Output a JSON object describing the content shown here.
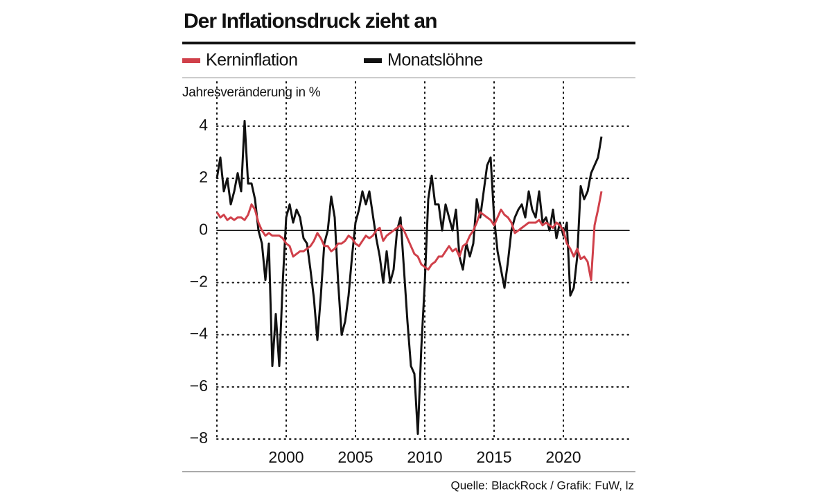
{
  "chart_data": {
    "type": "line",
    "title": "Der Inflationsdruck zieht an",
    "y_label": "Jahresveränderung in %",
    "source": "Quelle: BlackRock / Grafik: FuW, lz",
    "legend": "top",
    "grid": true,
    "xlim": [
      1995,
      2025
    ],
    "xticks": [
      2000,
      2005,
      2010,
      2015,
      2020
    ],
    "ylim": [
      -8,
      5.7
    ],
    "yticks": [
      {
        "value": -8,
        "label": "−8"
      },
      {
        "value": -6,
        "label": "−6"
      },
      {
        "value": -4,
        "label": "−4"
      },
      {
        "value": -2,
        "label": "−2"
      },
      0,
      2,
      4
    ],
    "x": [
      1995,
      1995.25,
      1995.5,
      1995.75,
      1996,
      1996.25,
      1996.5,
      1996.75,
      1997,
      1997.25,
      1997.5,
      1997.75,
      1998,
      1998.25,
      1998.5,
      1998.75,
      1999,
      1999.25,
      1999.5,
      1999.75,
      2000,
      2000.25,
      2000.5,
      2000.75,
      2001,
      2001.25,
      2001.5,
      2001.75,
      2002,
      2002.25,
      2002.5,
      2002.75,
      2003,
      2003.25,
      2003.5,
      2003.75,
      2004,
      2004.25,
      2004.5,
      2004.75,
      2005,
      2005.25,
      2005.5,
      2005.75,
      2006,
      2006.25,
      2006.5,
      2006.75,
      2007,
      2007.25,
      2007.5,
      2007.75,
      2008,
      2008.25,
      2008.5,
      2008.75,
      2009,
      2009.25,
      2009.5,
      2009.75,
      2010,
      2010.25,
      2010.5,
      2010.75,
      2011,
      2011.25,
      2011.5,
      2011.75,
      2012,
      2012.25,
      2012.5,
      2012.75,
      2013,
      2013.25,
      2013.5,
      2013.75,
      2014,
      2014.25,
      2014.5,
      2014.75,
      2015,
      2015.25,
      2015.5,
      2015.75,
      2016,
      2016.25,
      2016.5,
      2016.75,
      2017,
      2017.25,
      2017.5,
      2017.75,
      2018,
      2018.25,
      2018.5,
      2018.75,
      2019,
      2019.25,
      2019.5,
      2019.75,
      2020,
      2020.25,
      2020.5,
      2020.75,
      2021,
      2021.25,
      2021.5,
      2021.75,
      2022,
      2022.25,
      2022.5,
      2022.75
    ],
    "series": [
      {
        "name": "Kerninflation",
        "color": "#d0404a",
        "values": [
          0.7,
          0.5,
          0.6,
          0.4,
          0.5,
          0.4,
          0.5,
          0.5,
          0.4,
          0.6,
          1.0,
          0.8,
          0.3,
          0.0,
          -0.2,
          -0.1,
          -0.2,
          -0.2,
          -0.2,
          -0.3,
          -0.5,
          -0.6,
          -1.0,
          -0.9,
          -0.8,
          -0.8,
          -0.7,
          -0.6,
          -0.4,
          -0.1,
          -0.3,
          -0.6,
          -0.6,
          -0.8,
          -0.7,
          -0.5,
          -0.5,
          -0.4,
          -0.2,
          -0.3,
          -0.5,
          -0.6,
          -0.4,
          -0.2,
          -0.3,
          -0.2,
          0.0,
          0.1,
          -0.4,
          -0.2,
          -0.1,
          0.0,
          0.1,
          0.2,
          0.0,
          -0.3,
          -0.6,
          -0.9,
          -1.0,
          -1.3,
          -1.4,
          -1.5,
          -1.3,
          -1.2,
          -1.0,
          -1.0,
          -0.8,
          -0.6,
          -0.8,
          -0.7,
          -1.0,
          -0.6,
          -0.5,
          -0.2,
          0.0,
          0.3,
          0.7,
          0.6,
          0.5,
          0.4,
          0.2,
          0.5,
          0.8,
          0.6,
          0.5,
          0.3,
          -0.1,
          0.0,
          0.1,
          0.2,
          0.3,
          0.3,
          0.3,
          0.4,
          0.2,
          0.3,
          0.2,
          0.1,
          0.3,
          0.2,
          0.0,
          -0.5,
          -0.7,
          -1.0,
          -0.7,
          -1.1,
          -1.0,
          -1.2,
          -1.9,
          0.2,
          0.8,
          1.5
        ]
      },
      {
        "name": "Monatslöhne",
        "color": "#111111",
        "values": [
          2.0,
          2.8,
          1.5,
          2.0,
          1.0,
          1.5,
          2.2,
          1.5,
          4.2,
          1.8,
          1.8,
          1.2,
          0.0,
          -0.5,
          -1.9,
          -0.5,
          -5.2,
          -3.2,
          -5.2,
          -2.0,
          0.5,
          1.0,
          0.3,
          0.8,
          0.5,
          -0.3,
          -0.5,
          -1.5,
          -2.6,
          -4.2,
          -2.5,
          -0.5,
          0.0,
          1.3,
          0.5,
          -2.0,
          -4.0,
          -3.5,
          -2.5,
          -1.0,
          0.3,
          0.8,
          1.5,
          1.0,
          1.5,
          0.6,
          -0.3,
          -1.0,
          -2.0,
          -0.8,
          -2.0,
          -1.5,
          0.0,
          0.5,
          -1.5,
          -3.5,
          -5.2,
          -5.5,
          -7.8,
          -4.5,
          -2.0,
          1.2,
          2.1,
          1.0,
          1.0,
          0.0,
          1.0,
          0.5,
          0.0,
          0.8,
          -1.0,
          -1.5,
          -0.5,
          -1.0,
          -0.5,
          1.2,
          0.5,
          1.5,
          2.5,
          2.8,
          0.5,
          -0.8,
          -1.5,
          -2.2,
          -1.2,
          0.0,
          0.5,
          0.8,
          1.0,
          0.5,
          1.5,
          0.8,
          0.5,
          1.5,
          0.3,
          0.5,
          0.0,
          0.8,
          -0.3,
          0.3,
          -0.2,
          0.3,
          -2.5,
          -2.2,
          -1.0,
          1.7,
          1.2,
          1.5,
          2.2,
          2.5,
          2.8,
          3.6
        ]
      }
    ]
  }
}
